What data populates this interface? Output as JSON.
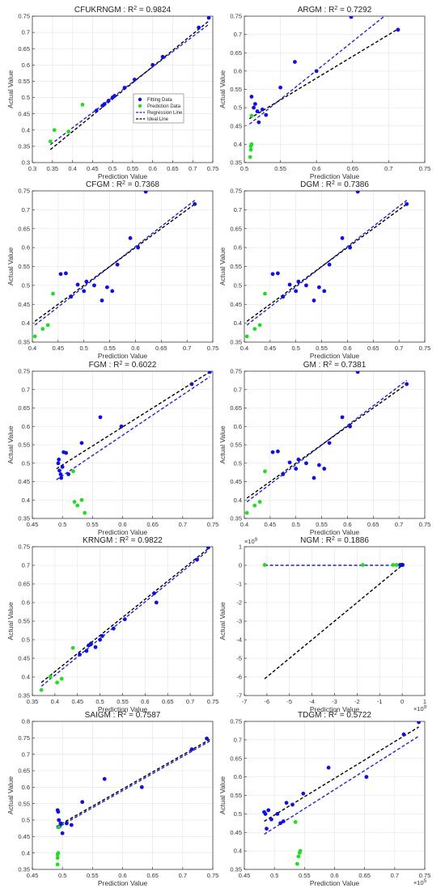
{
  "figure": {
    "xlabel": "Prediction Value",
    "ylabel": "Actual Value",
    "legend": {
      "fitting": "Fitting Data",
      "prediction": "Prediction Data",
      "regression": "Regression Line",
      "ideal": "Ideal Line"
    },
    "colors": {
      "fitting": "#1010e0",
      "prediction": "#22dd22",
      "regression": "#2222cc",
      "ideal": "#000000"
    }
  },
  "chart_data": [
    {
      "type": "scatter",
      "title_model": "CFUKRNGM",
      "r2": "0.9824",
      "xlim": [
        0.3,
        0.75
      ],
      "ylim": [
        0.3,
        0.75
      ],
      "xticks": [
        "0.3",
        "0.35",
        "0.4",
        "0.45",
        "0.5",
        "0.55",
        "0.6",
        "0.65",
        "0.7",
        "0.75"
      ],
      "yticks": [
        "0.3",
        "0.35",
        "0.4",
        "0.45",
        "0.5",
        "0.55",
        "0.6",
        "0.65",
        "0.7",
        "0.75"
      ],
      "fitting": [
        [
          0.46,
          0.46
        ],
        [
          0.475,
          0.475
        ],
        [
          0.48,
          0.48
        ],
        [
          0.49,
          0.49
        ],
        [
          0.5,
          0.5
        ],
        [
          0.505,
          0.505
        ],
        [
          0.53,
          0.53
        ],
        [
          0.555,
          0.555
        ],
        [
          0.6,
          0.6
        ],
        [
          0.625,
          0.625
        ],
        [
          0.715,
          0.715
        ],
        [
          0.74,
          0.745
        ]
      ],
      "prediction": [
        [
          0.345,
          0.365
        ],
        [
          0.355,
          0.4
        ],
        [
          0.39,
          0.395
        ],
        [
          0.425,
          0.478
        ]
      ],
      "regression": [
        [
          0.345,
          0.355
        ],
        [
          0.74,
          0.725
        ]
      ],
      "ideal": [
        [
          0.345,
          0.34
        ],
        [
          0.74,
          0.735
        ]
      ]
    },
    {
      "type": "scatter",
      "title_model": "ARGM",
      "r2": "0.7292",
      "xlim": [
        0.5,
        0.75
      ],
      "ylim": [
        0.35,
        0.75
      ],
      "xticks": [
        "0.5",
        "0.55",
        "0.6",
        "0.65",
        "0.7",
        "0.75"
      ],
      "yticks": [
        "0.35",
        "0.4",
        "0.45",
        "0.5",
        "0.55",
        "0.6",
        "0.65",
        "0.7",
        "0.75"
      ],
      "fitting": [
        [
          0.51,
          0.53
        ],
        [
          0.513,
          0.5
        ],
        [
          0.515,
          0.51
        ],
        [
          0.518,
          0.49
        ],
        [
          0.52,
          0.46
        ],
        [
          0.525,
          0.495
        ],
        [
          0.53,
          0.48
        ],
        [
          0.55,
          0.555
        ],
        [
          0.57,
          0.625
        ],
        [
          0.6,
          0.6
        ],
        [
          0.648,
          0.748
        ],
        [
          0.713,
          0.713
        ]
      ],
      "prediction": [
        [
          0.508,
          0.365
        ],
        [
          0.509,
          0.385
        ],
        [
          0.509,
          0.395
        ],
        [
          0.51,
          0.4
        ],
        [
          0.51,
          0.478
        ]
      ],
      "regression": [
        [
          0.507,
          0.455
        ],
        [
          0.713,
          0.78
        ]
      ],
      "ideal": [
        [
          0.507,
          0.47
        ],
        [
          0.713,
          0.715
        ]
      ]
    },
    {
      "type": "scatter",
      "title_model": "CFGM",
      "r2": "0.7368",
      "xlim": [
        0.4,
        0.75
      ],
      "ylim": [
        0.35,
        0.75
      ],
      "xticks": [
        "0.4",
        "0.45",
        "0.5",
        "0.55",
        "0.6",
        "0.65",
        "0.7",
        "0.75"
      ],
      "yticks": [
        "0.35",
        "0.4",
        "0.45",
        "0.5",
        "0.55",
        "0.6",
        "0.65",
        "0.7",
        "0.75"
      ],
      "fitting": [
        [
          0.455,
          0.53
        ],
        [
          0.465,
          0.532
        ],
        [
          0.475,
          0.47
        ],
        [
          0.488,
          0.502
        ],
        [
          0.5,
          0.485
        ],
        [
          0.505,
          0.51
        ],
        [
          0.52,
          0.5
        ],
        [
          0.535,
          0.46
        ],
        [
          0.545,
          0.495
        ],
        [
          0.555,
          0.485
        ],
        [
          0.565,
          0.555
        ],
        [
          0.59,
          0.625
        ],
        [
          0.605,
          0.6
        ],
        [
          0.62,
          0.748
        ],
        [
          0.715,
          0.715
        ]
      ],
      "prediction": [
        [
          0.405,
          0.365
        ],
        [
          0.42,
          0.385
        ],
        [
          0.43,
          0.395
        ],
        [
          0.44,
          0.478
        ]
      ],
      "regression": [
        [
          0.405,
          0.395
        ],
        [
          0.715,
          0.725
        ]
      ],
      "ideal": [
        [
          0.405,
          0.405
        ],
        [
          0.715,
          0.715
        ]
      ]
    },
    {
      "type": "scatter",
      "title_model": "DGM",
      "r2": "0.7386",
      "xlim": [
        0.4,
        0.75
      ],
      "ylim": [
        0.35,
        0.75
      ],
      "xticks": [
        "0.4",
        "0.45",
        "0.5",
        "0.55",
        "0.6",
        "0.65",
        "0.7",
        "0.75"
      ],
      "yticks": [
        "0.35",
        "0.4",
        "0.45",
        "0.5",
        "0.55",
        "0.6",
        "0.65",
        "0.7",
        "0.75"
      ],
      "fitting": [
        [
          0.455,
          0.53
        ],
        [
          0.465,
          0.532
        ],
        [
          0.475,
          0.47
        ],
        [
          0.488,
          0.502
        ],
        [
          0.5,
          0.485
        ],
        [
          0.505,
          0.51
        ],
        [
          0.52,
          0.5
        ],
        [
          0.535,
          0.46
        ],
        [
          0.545,
          0.495
        ],
        [
          0.555,
          0.485
        ],
        [
          0.565,
          0.555
        ],
        [
          0.59,
          0.625
        ],
        [
          0.605,
          0.6
        ],
        [
          0.62,
          0.748
        ],
        [
          0.715,
          0.715
        ]
      ],
      "prediction": [
        [
          0.405,
          0.365
        ],
        [
          0.42,
          0.385
        ],
        [
          0.43,
          0.395
        ],
        [
          0.44,
          0.478
        ]
      ],
      "regression": [
        [
          0.405,
          0.395
        ],
        [
          0.715,
          0.725
        ]
      ],
      "ideal": [
        [
          0.405,
          0.405
        ],
        [
          0.715,
          0.715
        ]
      ]
    },
    {
      "type": "scatter",
      "title_model": "FGM",
      "r2": "0.6022",
      "xlim": [
        0.45,
        0.75
      ],
      "ylim": [
        0.35,
        0.75
      ],
      "xticks": [
        "0.45",
        "0.5",
        "0.55",
        "0.6",
        "0.65",
        "0.7",
        "0.75"
      ],
      "yticks": [
        "0.35",
        "0.4",
        "0.45",
        "0.5",
        "0.55",
        "0.6",
        "0.65",
        "0.7",
        "0.75"
      ],
      "fitting": [
        [
          0.493,
          0.5
        ],
        [
          0.494,
          0.51
        ],
        [
          0.495,
          0.48
        ],
        [
          0.497,
          0.47
        ],
        [
          0.498,
          0.46
        ],
        [
          0.5,
          0.49
        ],
        [
          0.502,
          0.53
        ],
        [
          0.506,
          0.528
        ],
        [
          0.51,
          0.47
        ],
        [
          0.532,
          0.555
        ],
        [
          0.563,
          0.625
        ],
        [
          0.598,
          0.6
        ],
        [
          0.715,
          0.715
        ],
        [
          0.745,
          0.748
        ]
      ],
      "prediction": [
        [
          0.52,
          0.395
        ],
        [
          0.525,
          0.385
        ],
        [
          0.532,
          0.4
        ],
        [
          0.537,
          0.365
        ],
        [
          0.518,
          0.478
        ]
      ],
      "regression": [
        [
          0.49,
          0.455
        ],
        [
          0.745,
          0.735
        ]
      ],
      "ideal": [
        [
          0.49,
          0.485
        ],
        [
          0.745,
          0.748
        ]
      ]
    },
    {
      "type": "scatter",
      "title_model": "GM",
      "r2": "0.7381",
      "xlim": [
        0.4,
        0.75
      ],
      "ylim": [
        0.35,
        0.75
      ],
      "xticks": [
        "0.4",
        "0.45",
        "0.5",
        "0.55",
        "0.6",
        "0.65",
        "0.7",
        "0.75"
      ],
      "yticks": [
        "0.35",
        "0.4",
        "0.45",
        "0.5",
        "0.55",
        "0.6",
        "0.65",
        "0.7",
        "0.75"
      ],
      "fitting": [
        [
          0.455,
          0.53
        ],
        [
          0.465,
          0.532
        ],
        [
          0.475,
          0.47
        ],
        [
          0.488,
          0.502
        ],
        [
          0.5,
          0.485
        ],
        [
          0.505,
          0.51
        ],
        [
          0.52,
          0.5
        ],
        [
          0.535,
          0.46
        ],
        [
          0.545,
          0.495
        ],
        [
          0.555,
          0.485
        ],
        [
          0.565,
          0.555
        ],
        [
          0.59,
          0.625
        ],
        [
          0.605,
          0.6
        ],
        [
          0.62,
          0.748
        ],
        [
          0.715,
          0.715
        ]
      ],
      "prediction": [
        [
          0.405,
          0.365
        ],
        [
          0.42,
          0.385
        ],
        [
          0.43,
          0.395
        ],
        [
          0.44,
          0.478
        ]
      ],
      "regression": [
        [
          0.405,
          0.395
        ],
        [
          0.715,
          0.725
        ]
      ],
      "ideal": [
        [
          0.405,
          0.405
        ],
        [
          0.715,
          0.715
        ]
      ]
    },
    {
      "type": "scatter",
      "title_model": "KRNGM",
      "r2": "0.9822",
      "xlim": [
        0.35,
        0.75
      ],
      "ylim": [
        0.35,
        0.75
      ],
      "xticks": [
        "0.35",
        "0.4",
        "0.45",
        "0.5",
        "0.55",
        "0.6",
        "0.65",
        "0.7",
        "0.75"
      ],
      "yticks": [
        "0.35",
        "0.4",
        "0.45",
        "0.5",
        "0.55",
        "0.6",
        "0.65",
        "0.7",
        "0.75"
      ],
      "fitting": [
        [
          0.455,
          0.46
        ],
        [
          0.47,
          0.47
        ],
        [
          0.475,
          0.485
        ],
        [
          0.48,
          0.49
        ],
        [
          0.49,
          0.48
        ],
        [
          0.5,
          0.5
        ],
        [
          0.505,
          0.51
        ],
        [
          0.53,
          0.53
        ],
        [
          0.555,
          0.555
        ],
        [
          0.62,
          0.625
        ],
        [
          0.625,
          0.6
        ],
        [
          0.715,
          0.715
        ],
        [
          0.74,
          0.748
        ]
      ],
      "prediction": [
        [
          0.37,
          0.365
        ],
        [
          0.39,
          0.4
        ],
        [
          0.405,
          0.385
        ],
        [
          0.415,
          0.395
        ],
        [
          0.44,
          0.478
        ]
      ],
      "regression": [
        [
          0.37,
          0.375
        ],
        [
          0.74,
          0.74
        ]
      ],
      "ideal": [
        [
          0.37,
          0.385
        ],
        [
          0.74,
          0.745
        ]
      ]
    },
    {
      "type": "scatter",
      "title_model": "NGM",
      "r2": "0.1886",
      "xlim": [
        -7,
        1
      ],
      "ylim": [
        -7,
        1
      ],
      "xexp": "9",
      "yexp": "9",
      "xticks": [
        "-7",
        "-6",
        "-5",
        "-4",
        "-3",
        "-2",
        "-1",
        "0",
        "1"
      ],
      "yticks": [
        "-7",
        "-6",
        "-5",
        "-4",
        "-3",
        "-2",
        "-1",
        "0",
        "1"
      ],
      "fitting": [
        [
          -0.05,
          0.02
        ],
        [
          -0.02,
          0.02
        ],
        [
          0.0,
          0.02
        ],
        [
          0.02,
          0.02
        ],
        [
          -0.1,
          0.02
        ]
      ],
      "prediction": [
        [
          -6.1,
          0.02
        ],
        [
          -1.75,
          0.02
        ],
        [
          -0.4,
          0.02
        ],
        [
          -0.25,
          0.02
        ]
      ],
      "regression": [
        [
          -6.1,
          0.0
        ],
        [
          0.0,
          0.0
        ]
      ],
      "ideal": [
        [
          -6.1,
          -6.1
        ],
        [
          0.0,
          0.0
        ]
      ]
    },
    {
      "type": "scatter",
      "title_model": "SAIGM",
      "r2": "0.7587",
      "xlim": [
        0.45,
        0.75
      ],
      "ylim": [
        0.35,
        0.8
      ],
      "xticks": [
        "0.45",
        "0.5",
        "0.55",
        "0.6",
        "0.65",
        "0.7",
        "0.75"
      ],
      "yticks": [
        "0.35",
        "0.4",
        "0.45",
        "0.5",
        "0.55",
        "0.6",
        "0.65",
        "0.7",
        "0.75",
        "0.8"
      ],
      "fitting": [
        [
          0.492,
          0.53
        ],
        [
          0.493,
          0.525
        ],
        [
          0.494,
          0.5
        ],
        [
          0.495,
          0.48
        ],
        [
          0.497,
          0.49
        ],
        [
          0.5,
          0.46
        ],
        [
          0.507,
          0.49
        ],
        [
          0.515,
          0.485
        ],
        [
          0.533,
          0.555
        ],
        [
          0.57,
          0.625
        ],
        [
          0.632,
          0.6
        ],
        [
          0.715,
          0.715
        ],
        [
          0.74,
          0.748
        ]
      ],
      "prediction": [
        [
          0.492,
          0.365
        ],
        [
          0.492,
          0.385
        ],
        [
          0.492,
          0.395
        ],
        [
          0.493,
          0.4
        ],
        [
          0.494,
          0.478
        ]
      ],
      "regression": [
        [
          0.49,
          0.475
        ],
        [
          0.745,
          0.74
        ]
      ],
      "ideal": [
        [
          0.49,
          0.48
        ],
        [
          0.745,
          0.745
        ]
      ]
    },
    {
      "type": "scatter",
      "title_model": "TDGM",
      "r2": "0.5722",
      "xexp": "5",
      "xlim": [
        0.45,
        0.75
      ],
      "ylim": [
        0.35,
        0.75
      ],
      "xticks": [
        "0.45",
        "0.5",
        "0.55",
        "0.6",
        "0.65",
        "0.7",
        "0.75"
      ],
      "yticks": [
        "0.35",
        "0.4",
        "0.45",
        "0.5",
        "0.55",
        "0.6",
        "0.65",
        "0.7",
        "0.75"
      ],
      "fitting": [
        [
          0.483,
          0.505
        ],
        [
          0.485,
          0.5
        ],
        [
          0.487,
          0.46
        ],
        [
          0.49,
          0.51
        ],
        [
          0.495,
          0.485
        ],
        [
          0.505,
          0.5
        ],
        [
          0.51,
          0.475
        ],
        [
          0.515,
          0.48
        ],
        [
          0.52,
          0.53
        ],
        [
          0.53,
          0.525
        ],
        [
          0.548,
          0.555
        ],
        [
          0.59,
          0.625
        ],
        [
          0.653,
          0.6
        ],
        [
          0.715,
          0.715
        ],
        [
          0.74,
          0.748
        ]
      ],
      "prediction": [
        [
          0.538,
          0.365
        ],
        [
          0.54,
          0.385
        ],
        [
          0.542,
          0.395
        ],
        [
          0.543,
          0.4
        ],
        [
          0.535,
          0.478
        ]
      ],
      "regression": [
        [
          0.483,
          0.445
        ],
        [
          0.74,
          0.71
        ]
      ],
      "ideal": [
        [
          0.483,
          0.48
        ],
        [
          0.74,
          0.735
        ]
      ]
    }
  ]
}
